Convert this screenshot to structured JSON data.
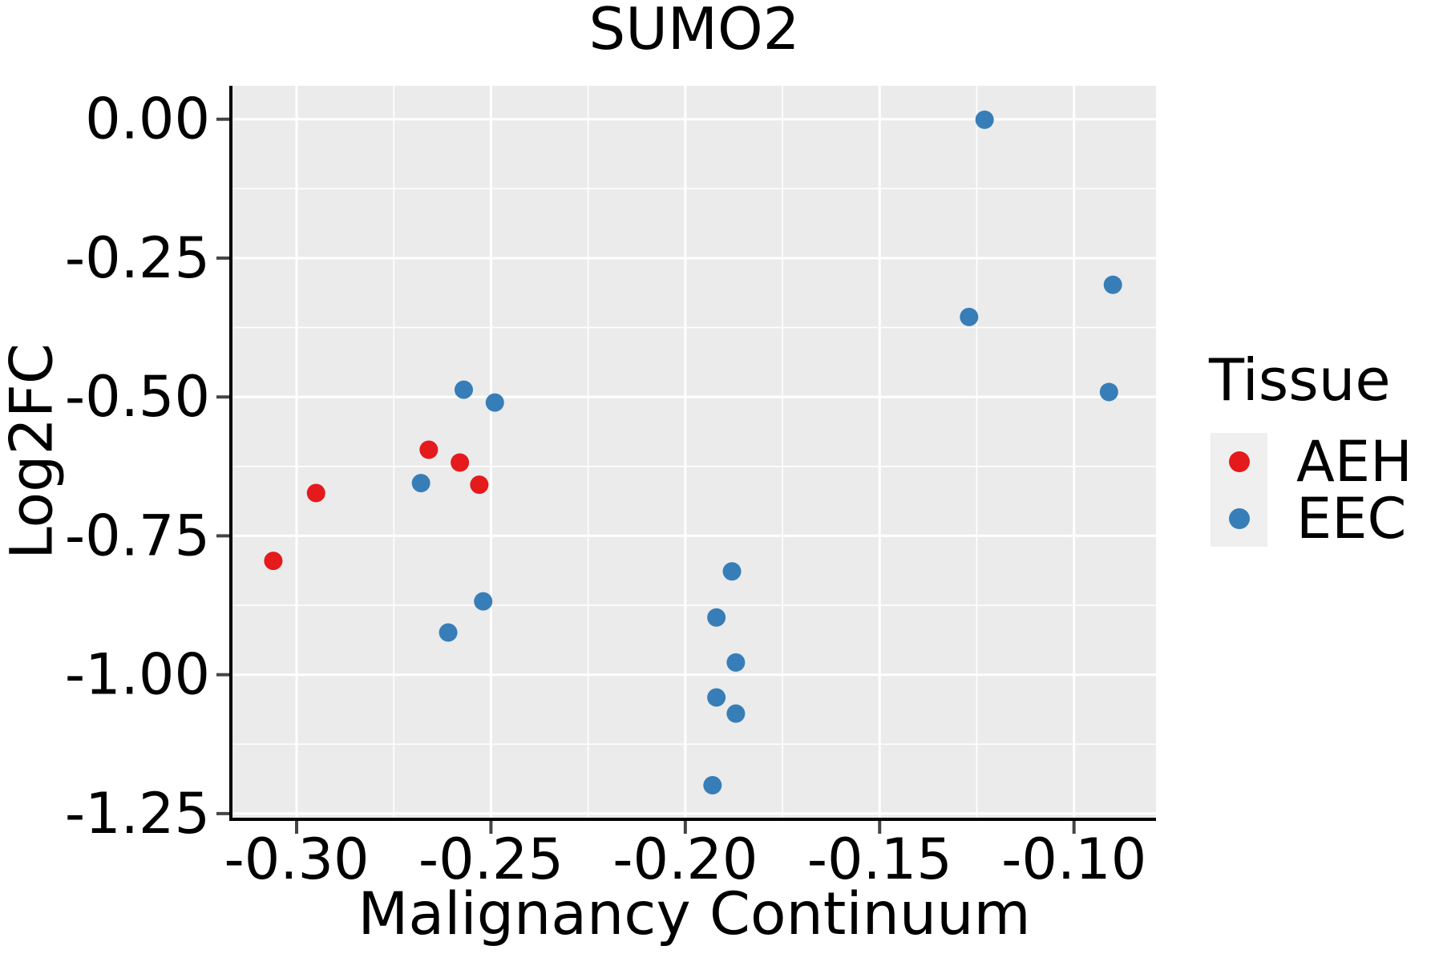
{
  "title": "SUMO2",
  "chart_data": {
    "type": "scatter",
    "title": "SUMO2",
    "xlabel": "Malignancy Continuum",
    "ylabel": "Log2FC",
    "xlim": [
      -0.3165,
      -0.0789
    ],
    "ylim": [
      -1.2574,
      0.0602
    ],
    "x_ticks": [
      -0.3,
      -0.25,
      -0.2,
      -0.15,
      -0.1
    ],
    "x_tick_labels": [
      "-0.30",
      "-0.25",
      "-0.20",
      "-0.15",
      "-0.10"
    ],
    "y_ticks": [
      0.0,
      -0.25,
      -0.5,
      -0.75,
      -1.0,
      -1.25
    ],
    "y_tick_labels": [
      "0.00",
      "-0.25",
      "-0.50",
      "-0.75",
      "-1.00",
      "-1.25"
    ],
    "x_minor_ticks": [
      -0.275,
      -0.225,
      -0.175,
      -0.125
    ],
    "y_minor_ticks": [
      -0.125,
      -0.375,
      -0.625,
      -0.875,
      -1.125
    ],
    "grid": true,
    "panel_background": "#ebebeb",
    "gridline_color": "#ffffff",
    "legend": {
      "title": "Tissue",
      "position": "right"
    },
    "series": [
      {
        "name": "AEH",
        "color": "#E41A1C",
        "points": [
          [
            -0.306,
            -0.795
          ],
          [
            -0.295,
            -0.673
          ],
          [
            -0.266,
            -0.595
          ],
          [
            -0.258,
            -0.618
          ],
          [
            -0.253,
            -0.658
          ]
        ]
      },
      {
        "name": "EEC",
        "color": "#377EB8",
        "points": [
          [
            -0.268,
            -0.655
          ],
          [
            -0.257,
            -0.487
          ],
          [
            -0.249,
            -0.51
          ],
          [
            -0.261,
            -0.924
          ],
          [
            -0.252,
            -0.868
          ],
          [
            -0.188,
            -0.814
          ],
          [
            -0.192,
            -0.897
          ],
          [
            -0.187,
            -0.978
          ],
          [
            -0.192,
            -1.041
          ],
          [
            -0.187,
            -1.07
          ],
          [
            -0.193,
            -1.199
          ],
          [
            -0.123,
            -0.001
          ],
          [
            -0.127,
            -0.356
          ],
          [
            -0.09,
            -0.298
          ],
          [
            -0.091,
            -0.491
          ]
        ]
      }
    ]
  }
}
